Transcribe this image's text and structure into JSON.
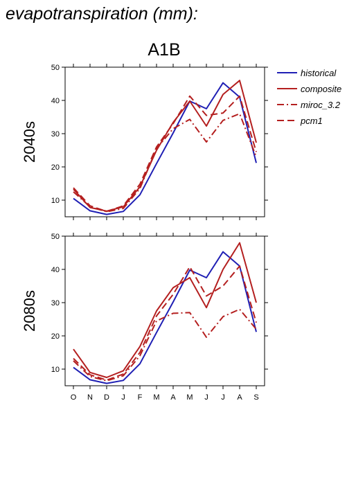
{
  "page": {
    "title": "evapotranspiration (mm):"
  },
  "colors": {
    "historical": "#1f1fb4",
    "future": "#b41f1f"
  },
  "chart_data": {
    "type": "line",
    "title": "A1B",
    "categories": [
      "O",
      "N",
      "D",
      "J",
      "F",
      "M",
      "A",
      "M",
      "J",
      "J",
      "A",
      "S"
    ],
    "ylim": [
      5,
      50
    ],
    "yticks": [
      10,
      20,
      30,
      40,
      50
    ],
    "grid": false,
    "legend_position": "right",
    "legend": [
      {
        "name": "historical",
        "color": "#1f1fb4",
        "dash": "solid"
      },
      {
        "name": "composite",
        "color": "#b41f1f",
        "dash": "solid"
      },
      {
        "name": "miroc_3.2",
        "color": "#b41f1f",
        "dash": "dashdot"
      },
      {
        "name": "pcm1",
        "color": "#b41f1f",
        "dash": "dashed"
      }
    ],
    "panels": [
      {
        "label": "2040s",
        "series": [
          {
            "name": "historical",
            "values": [
              10.5,
              6.8,
              5.7,
              6.6,
              11.6,
              21.0,
              30.2,
              39.8,
              37.5,
              45.3,
              41.0,
              21.2
            ]
          },
          {
            "name": "composite",
            "values": [
              13.3,
              7.8,
              6.7,
              8.0,
              14.0,
              25.0,
              33.4,
              39.8,
              32.3,
              41.8,
              46.0,
              27.3
            ]
          },
          {
            "name": "miroc_3.2",
            "values": [
              12.5,
              8.0,
              6.5,
              7.5,
              13.5,
              25.5,
              31.5,
              34.3,
              27.5,
              34.0,
              36.0,
              23.0
            ]
          },
          {
            "name": "pcm1",
            "values": [
              13.7,
              8.3,
              6.6,
              8.3,
              14.8,
              26.0,
              33.0,
              41.3,
              35.5,
              36.2,
              41.3,
              24.5
            ]
          }
        ]
      },
      {
        "label": "2080s",
        "series": [
          {
            "name": "historical",
            "values": [
              10.5,
              6.8,
              5.7,
              6.6,
              11.6,
              21.0,
              30.2,
              39.8,
              37.5,
              45.3,
              41.0,
              21.2
            ]
          },
          {
            "name": "composite",
            "values": [
              16.0,
              9.0,
              7.5,
              9.5,
              16.8,
              27.5,
              34.5,
              37.5,
              28.5,
              40.0,
              48.0,
              30.0
            ]
          },
          {
            "name": "miroc_3.2",
            "values": [
              12.5,
              7.8,
              6.5,
              8.0,
              14.0,
              24.5,
              26.8,
              27.0,
              19.6,
              25.8,
              28.0,
              22.0
            ]
          },
          {
            "name": "pcm1",
            "values": [
              13.2,
              8.3,
              6.7,
              8.5,
              15.0,
              26.0,
              32.5,
              40.8,
              32.0,
              35.0,
              41.0,
              24.0
            ]
          }
        ]
      }
    ]
  }
}
